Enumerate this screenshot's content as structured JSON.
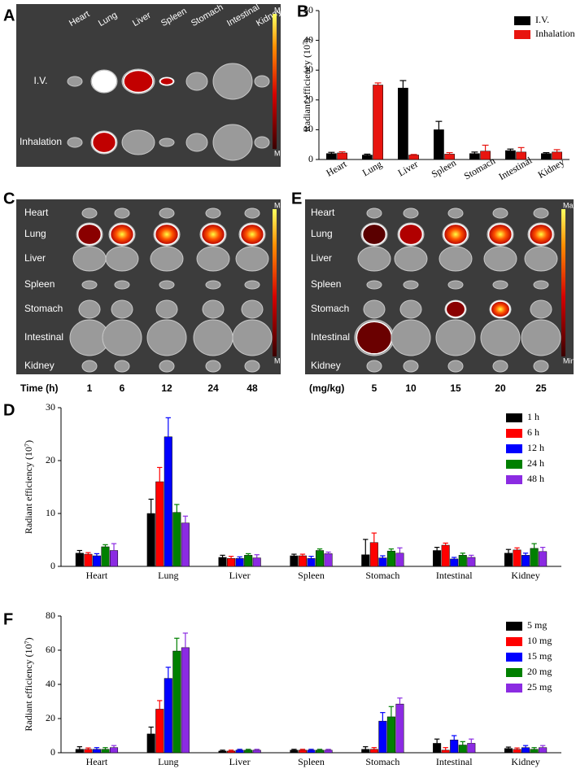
{
  "images": [
    {
      "panel": "A",
      "columns": [
        "Heart",
        "Lung",
        "Liver",
        "Spleen",
        "Stomach",
        "Intestinal",
        "Kidney"
      ],
      "rows": [
        "I.V.",
        "Inhalation"
      ],
      "scale": [
        "Max",
        "Min"
      ]
    },
    {
      "panel": "C",
      "rows": [
        "Heart",
        "Lung",
        "Liver",
        "Spleen",
        "Stomach",
        "Intestinal",
        "Kidney"
      ],
      "x_title": "Time (h)",
      "columns": [
        "1",
        "6",
        "12",
        "24",
        "48"
      ],
      "scale": [
        "Max",
        "Min"
      ]
    },
    {
      "panel": "E",
      "rows": [
        "Heart",
        "Lung",
        "Liver",
        "Spleen",
        "Stomach",
        "Intestinal",
        "Kidney"
      ],
      "x_title": "(mg/kg)",
      "columns": [
        "5",
        "10",
        "15",
        "20",
        "25"
      ],
      "scale": [
        "Max",
        "Min"
      ]
    }
  ],
  "chart_data": [
    {
      "type": "bar",
      "panel": "B",
      "y_label": "Radiant efficiency (10⁷)",
      "legend": "upper right",
      "categories": [
        "Heart",
        "Lung",
        "Liver",
        "Spleen",
        "Stomach",
        "Intestinal",
        "Kidney"
      ],
      "ylim": [
        0,
        50
      ],
      "yticks": [
        0,
        10,
        20,
        30,
        40,
        50
      ],
      "series": [
        {
          "name": "I.V.",
          "color": "#000000",
          "values": [
            2,
            1.5,
            24,
            10,
            2,
            3,
            2
          ],
          "errors": [
            0.4,
            0.3,
            2.5,
            2.8,
            0.5,
            0.5,
            0.3
          ]
        },
        {
          "name": "Inhalation",
          "color": "#e8150f",
          "values": [
            2.2,
            25,
            1.5,
            1.8,
            2.8,
            2.5,
            2.5
          ],
          "errors": [
            0.4,
            0.7,
            0.2,
            0.5,
            2,
            1.5,
            0.8
          ]
        }
      ]
    },
    {
      "type": "bar",
      "panel": "D",
      "y_label": "Radiant efficiency (10⁷)",
      "legend": "upper right",
      "categories": [
        "Heart",
        "Lung",
        "Liver",
        "Spleen",
        "Stomach",
        "Intestinal",
        "Kidney"
      ],
      "ylim": [
        0,
        30
      ],
      "yticks": [
        0,
        10,
        20,
        30
      ],
      "series": [
        {
          "name": "1 h",
          "color": "#000000",
          "values": [
            2.5,
            10,
            1.7,
            2,
            2.2,
            3,
            2.5
          ],
          "errors": [
            0.5,
            2.7,
            0.4,
            0.3,
            2.9,
            0.6,
            0.7
          ]
        },
        {
          "name": "6 h",
          "color": "#ff0000",
          "values": [
            2.3,
            16,
            1.5,
            2,
            4.5,
            4,
            3.1
          ],
          "errors": [
            0.3,
            2.7,
            0.4,
            0.3,
            1.8,
            0.4,
            0.4
          ]
        },
        {
          "name": "12 h",
          "color": "#0000ff",
          "values": [
            2,
            24.5,
            1.5,
            1.5,
            1.6,
            1.4,
            2.1
          ],
          "errors": [
            0.4,
            3.6,
            0.3,
            0.4,
            0.4,
            0.3,
            0.4
          ]
        },
        {
          "name": "24 h",
          "color": "#008000",
          "values": [
            3.7,
            10.2,
            2.1,
            3,
            2.9,
            2.1,
            3.4
          ],
          "errors": [
            0.4,
            1.5,
            0.3,
            0.3,
            0.4,
            0.4,
            0.9
          ]
        },
        {
          "name": "48 h",
          "color": "#8b2be2",
          "values": [
            3,
            8.2,
            1.6,
            2.4,
            2.5,
            1.7,
            2.8
          ],
          "errors": [
            1.3,
            1.3,
            0.6,
            0.3,
            1,
            0.4,
            0.8
          ]
        }
      ]
    },
    {
      "type": "bar",
      "panel": "F",
      "y_label": "Radiant efficiency (10⁷)",
      "legend": "upper right",
      "categories": [
        "Heart",
        "Lung",
        "Liver",
        "Spleen",
        "Stomach",
        "Intestinal",
        "Kidney"
      ],
      "ylim": [
        0,
        80
      ],
      "yticks": [
        0,
        20,
        40,
        60,
        80
      ],
      "series": [
        {
          "name": "5 mg",
          "color": "#000000",
          "values": [
            2,
            11,
            1,
            1.5,
            2,
            5.5,
            2.5
          ],
          "errors": [
            1.5,
            4,
            0.5,
            0.5,
            1.5,
            2.5,
            0.8
          ]
        },
        {
          "name": "10 mg",
          "color": "#ff0000",
          "values": [
            2,
            25.5,
            1,
            1.5,
            2,
            1.5,
            2
          ],
          "errors": [
            0.8,
            5,
            0.5,
            0.5,
            1,
            1.5,
            0.8
          ]
        },
        {
          "name": "15 mg",
          "color": "#0000ff",
          "values": [
            2,
            43.5,
            1.5,
            1.5,
            18.5,
            7.5,
            3
          ],
          "errors": [
            1,
            6.5,
            0.5,
            0.5,
            5,
            2.5,
            1.2
          ]
        },
        {
          "name": "20 mg",
          "color": "#008000",
          "values": [
            2,
            59.5,
            1.5,
            1.5,
            21,
            4.5,
            2
          ],
          "errors": [
            1,
            7.5,
            0.5,
            0.5,
            6,
            2,
            1
          ]
        },
        {
          "name": "25 mg",
          "color": "#8b2be2",
          "values": [
            3,
            61.5,
            1.5,
            1.5,
            28.5,
            5.5,
            3
          ],
          "errors": [
            1.2,
            8.5,
            0.5,
            0.5,
            3.5,
            2.5,
            1.2
          ]
        }
      ]
    }
  ]
}
